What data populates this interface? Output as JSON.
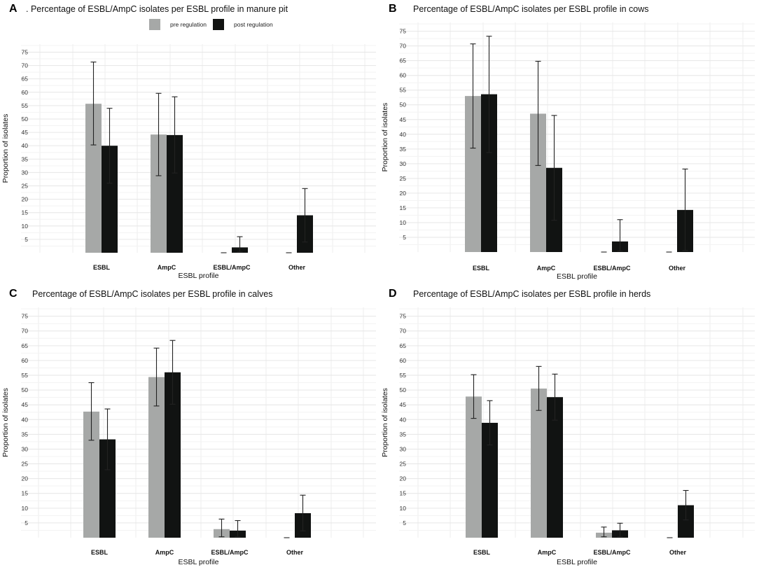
{
  "figure": {
    "legend": {
      "pre_label": "pre regulation",
      "post_label": "post regulation",
      "pre_color": "#a6a8a7",
      "post_color": "#111312"
    }
  },
  "chart_data": [
    {
      "panel": "A",
      "type": "bar",
      "title": ". Percentage of ESBL/AmpC isolates per ESBL profile in manure pit",
      "xlabel": "ESBL profile",
      "ylabel": "Proportion of isolates",
      "categories": [
        "ESBL",
        "AmpC",
        "ESBL/AmpC",
        "Other"
      ],
      "yticks": [
        5,
        10,
        15,
        20,
        25,
        30,
        35,
        40,
        45,
        50,
        55,
        60,
        65,
        70,
        75
      ],
      "ylim": [
        0,
        78
      ],
      "series": [
        {
          "name": "pre regulation",
          "values": [
            55.7,
            44.2,
            0,
            0
          ],
          "err_low": [
            40.3,
            28.8,
            0,
            0
          ],
          "err_high": [
            71.3,
            59.6,
            0,
            0
          ]
        },
        {
          "name": "post regulation",
          "values": [
            40.0,
            44.0,
            2.0,
            14.0
          ],
          "err_low": [
            26.0,
            29.8,
            0.3,
            4.0
          ],
          "err_high": [
            54.0,
            58.3,
            6.0,
            24.0
          ]
        }
      ],
      "grid": true
    },
    {
      "panel": "B",
      "type": "bar",
      "title": "Percentage of ESBL/AmpC isolates per ESBL profile in cows",
      "xlabel": "ESBL profile",
      "ylabel": "Proportion of isolates",
      "categories": [
        "ESBL",
        "AmpC",
        "ESBL/AmpC",
        "Other"
      ],
      "yticks": [
        5,
        10,
        15,
        20,
        25,
        30,
        35,
        40,
        45,
        50,
        55,
        60,
        65,
        70,
        75
      ],
      "ylim": [
        0,
        78
      ],
      "series": [
        {
          "name": "pre regulation",
          "values": [
            53.0,
            47.0,
            0,
            0
          ],
          "err_low": [
            35.3,
            29.4,
            0,
            0
          ],
          "err_high": [
            70.7,
            64.8,
            0,
            0
          ]
        },
        {
          "name": "post regulation",
          "values": [
            53.6,
            28.6,
            3.6,
            14.3
          ],
          "err_low": [
            33.8,
            10.8,
            0.3,
            0.5
          ],
          "err_high": [
            73.3,
            46.4,
            11.0,
            28.2
          ]
        }
      ],
      "grid": true
    },
    {
      "panel": "C",
      "type": "bar",
      "title": "Percentage of ESBL/AmpC isolates per ESBL profile  in calves",
      "xlabel": "ESBL profile",
      "ylabel": "Proportion of isolates",
      "categories": [
        "ESBL",
        "AmpC",
        "ESBL/AmpC",
        "Other"
      ],
      "yticks": [
        5,
        10,
        15,
        20,
        25,
        30,
        35,
        40,
        45,
        50,
        55,
        60,
        65,
        70,
        75
      ],
      "ylim": [
        0,
        78
      ],
      "series": [
        {
          "name": "pre regulation",
          "values": [
            42.7,
            54.4,
            2.9,
            0
          ],
          "err_low": [
            33.0,
            44.6,
            0.3,
            0
          ],
          "err_high": [
            52.5,
            64.2,
            6.3,
            0
          ]
        },
        {
          "name": "post regulation",
          "values": [
            33.3,
            56.0,
            2.4,
            8.3
          ],
          "err_low": [
            23.0,
            45.2,
            0.3,
            2.3
          ],
          "err_high": [
            43.6,
            66.8,
            5.8,
            14.4
          ]
        }
      ],
      "grid": true
    },
    {
      "panel": "D",
      "type": "bar",
      "title": "Percentage of ESBL/AmpC isolates per ESBL profile  in herds",
      "xlabel": "ESBL profile",
      "ylabel": "Proportion of isolates",
      "categories": [
        "ESBL",
        "AmpC",
        "ESBL/AmpC",
        "Other"
      ],
      "yticks": [
        5,
        10,
        15,
        20,
        25,
        30,
        35,
        40,
        45,
        50,
        55,
        60,
        65,
        70,
        75
      ],
      "ylim": [
        0,
        78
      ],
      "series": [
        {
          "name": "pre regulation",
          "values": [
            47.8,
            50.5,
            1.7,
            0
          ],
          "err_low": [
            40.4,
            43.1,
            0.3,
            0
          ],
          "err_high": [
            55.2,
            58.0,
            3.6,
            0
          ]
        },
        {
          "name": "post regulation",
          "values": [
            38.9,
            47.6,
            2.5,
            11.0
          ],
          "err_low": [
            31.4,
            39.8,
            0.3,
            6.0
          ],
          "err_high": [
            46.4,
            55.4,
            4.9,
            16.0
          ]
        }
      ],
      "grid": true
    }
  ]
}
